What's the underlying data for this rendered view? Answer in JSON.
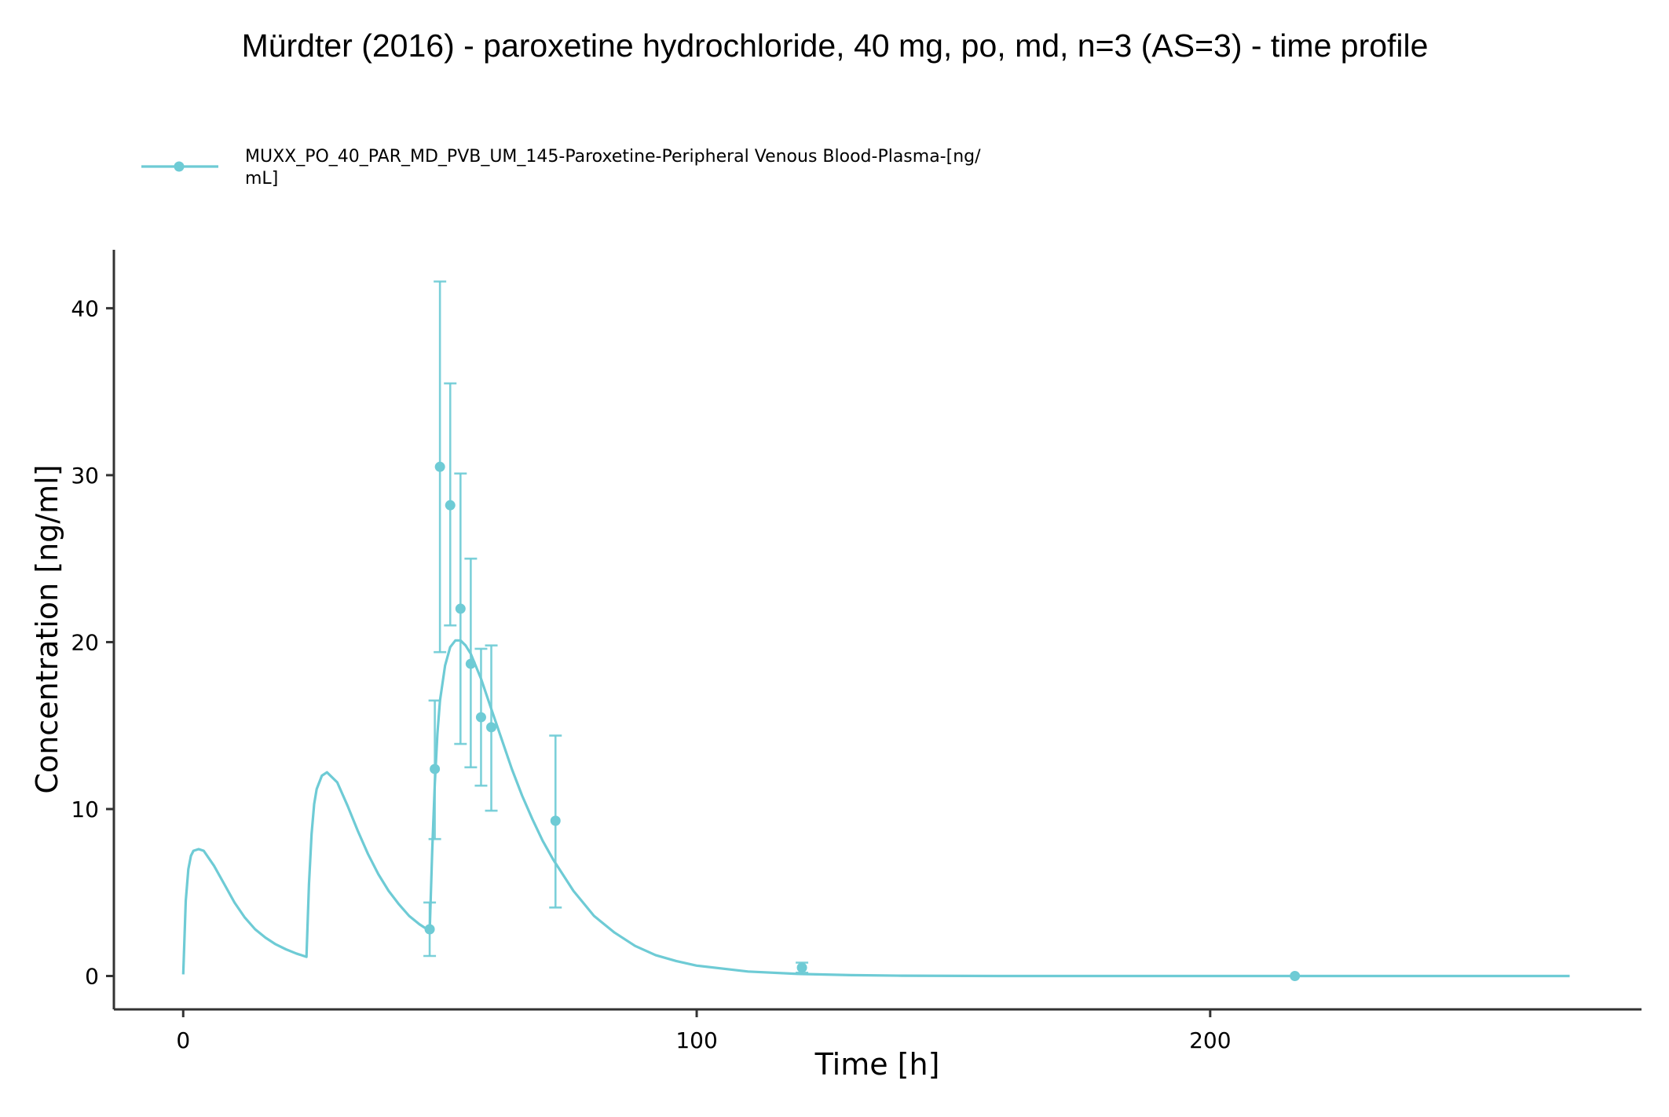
{
  "chart_data": {
    "type": "line",
    "title": "Mürdter (2016) - paroxetine hydrochloride, 40 mg, po, md, n=3 (AS=3) - time profile",
    "xlabel": "Time [h]",
    "ylabel": "Concentration [ng/ml]",
    "xlim": [
      -13.5,
      284
    ],
    "ylim": [
      -2,
      43.5
    ],
    "x_ticks": [
      0,
      100,
      200
    ],
    "y_ticks": [
      0,
      10,
      20,
      30,
      40
    ],
    "x_tick_labels": [
      "0",
      "100",
      "200"
    ],
    "y_tick_labels": [
      "0",
      "10",
      "20",
      "30",
      "40"
    ],
    "grid": false,
    "legend": {
      "position": "top-left",
      "label_line1": "MUXX_PO_40_PAR_MD_PVB_UM_145-Paroxetine-Peripheral Venous Blood-Plasma-[ng/",
      "label_line2": "mL]"
    },
    "color": "#6ECBD5",
    "series": [
      {
        "name": "MUXX_PO_40_PAR_MD_PVB_UM_145-Paroxetine-Peripheral Venous Blood-Plasma-[ng/mL]",
        "kind": "observed",
        "points": [
          {
            "x": 48,
            "y": 2.8,
            "err_low": 1.2,
            "err_high": 4.4
          },
          {
            "x": 49,
            "y": 12.4,
            "err_low": 8.2,
            "err_high": 16.5
          },
          {
            "x": 50,
            "y": 30.5,
            "err_low": 19.4,
            "err_high": 41.6
          },
          {
            "x": 52,
            "y": 28.2,
            "err_low": 21.0,
            "err_high": 35.5
          },
          {
            "x": 54,
            "y": 22.0,
            "err_low": 13.9,
            "err_high": 30.1
          },
          {
            "x": 56,
            "y": 18.7,
            "err_low": 12.5,
            "err_high": 25.0
          },
          {
            "x": 58,
            "y": 15.5,
            "err_low": 11.4,
            "err_high": 19.6
          },
          {
            "x": 60,
            "y": 14.9,
            "err_low": 9.9,
            "err_high": 19.8
          },
          {
            "x": 72.5,
            "y": 9.3,
            "err_low": 4.1,
            "err_high": 14.4
          },
          {
            "x": 120.5,
            "y": 0.5,
            "err_low": 0.2,
            "err_high": 0.8
          },
          {
            "x": 216.5,
            "y": 0.0,
            "err_low": 0.0,
            "err_high": 0.0
          }
        ]
      },
      {
        "name": "",
        "kind": "simulated",
        "x": [
          0,
          0.5,
          1,
          1.5,
          2,
          3,
          4,
          6,
          8,
          10,
          12,
          14,
          16,
          18,
          20,
          22,
          24,
          24.5,
          25,
          25.5,
          26,
          27,
          28,
          30,
          32,
          34,
          36,
          38,
          40,
          42,
          44,
          46,
          48,
          48.5,
          49,
          49.5,
          50,
          51,
          52,
          53,
          54,
          55,
          56,
          58,
          60,
          62,
          64,
          66,
          68,
          70,
          72,
          76,
          80,
          84,
          88,
          92,
          96,
          100,
          110,
          120,
          130,
          140,
          160,
          180,
          200,
          220,
          240,
          270
        ],
        "y": [
          0.1,
          4.5,
          6.4,
          7.2,
          7.5,
          7.6,
          7.5,
          6.6,
          5.5,
          4.4,
          3.5,
          2.8,
          2.3,
          1.9,
          1.6,
          1.35,
          1.15,
          5.5,
          8.5,
          10.3,
          11.2,
          12.0,
          12.2,
          11.6,
          10.2,
          8.7,
          7.3,
          6.1,
          5.1,
          4.3,
          3.6,
          3.1,
          2.7,
          7.5,
          11.5,
          14.5,
          16.5,
          18.6,
          19.7,
          20.1,
          20.1,
          19.8,
          19.3,
          17.8,
          16.0,
          14.2,
          12.4,
          10.8,
          9.4,
          8.1,
          7.0,
          5.1,
          3.6,
          2.6,
          1.8,
          1.25,
          0.9,
          0.62,
          0.27,
          0.12,
          0.05,
          0.02,
          0.0,
          0.0,
          0.0,
          0.0,
          0.0,
          0.0
        ]
      }
    ]
  }
}
